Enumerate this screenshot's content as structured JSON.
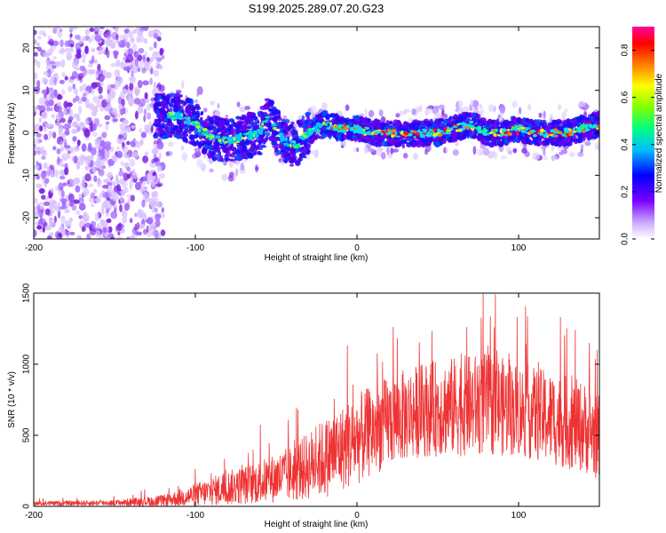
{
  "title": "S199.2025.289.07.20.G23",
  "chart_data": [
    {
      "type": "heatmap",
      "xlabel": "Height of straight line (km)",
      "ylabel": "Frequency (Hz)",
      "xlim": [
        -200,
        150
      ],
      "ylim": [
        -25,
        25
      ],
      "xticks": [
        -200,
        -100,
        0,
        100
      ],
      "yticks": [
        -20,
        -10,
        0,
        10,
        20
      ],
      "colorbar": {
        "label": "Normalized spectral amplitude",
        "range": [
          0,
          0.9
        ],
        "ticks": [
          0.0,
          0.2,
          0.4,
          0.6,
          0.8
        ]
      },
      "ridge": [
        {
          "x": -120,
          "y": 4
        },
        {
          "x": -110,
          "y": 4
        },
        {
          "x": -100,
          "y": 2
        },
        {
          "x": -90,
          "y": -1
        },
        {
          "x": -80,
          "y": -2
        },
        {
          "x": -70,
          "y": -1
        },
        {
          "x": -60,
          "y": 0
        },
        {
          "x": -55,
          "y": 4
        },
        {
          "x": -45,
          "y": -2
        },
        {
          "x": -38,
          "y": -3
        },
        {
          "x": -30,
          "y": 0
        },
        {
          "x": -20,
          "y": 2
        },
        {
          "x": -10,
          "y": 1
        },
        {
          "x": 0,
          "y": 1
        },
        {
          "x": 10,
          "y": 0
        },
        {
          "x": 20,
          "y": 0
        },
        {
          "x": 30,
          "y": -0.5
        },
        {
          "x": 40,
          "y": 0
        },
        {
          "x": 50,
          "y": 0
        },
        {
          "x": 60,
          "y": 1
        },
        {
          "x": 70,
          "y": 2
        },
        {
          "x": 80,
          "y": 0
        },
        {
          "x": 90,
          "y": 0
        },
        {
          "x": 100,
          "y": 1
        },
        {
          "x": 110,
          "y": 0
        },
        {
          "x": 120,
          "y": 0
        },
        {
          "x": 130,
          "y": 0
        },
        {
          "x": 140,
          "y": 1
        },
        {
          "x": 150,
          "y": 2
        }
      ]
    },
    {
      "type": "line",
      "xlabel": "Height of straight line (km)",
      "ylabel": "SNR (10 * v/v)",
      "xlim": [
        -200,
        150
      ],
      "ylim": [
        0,
        1500
      ],
      "xticks": [
        -200,
        -100,
        0,
        100
      ],
      "yticks": [
        0,
        500,
        1000,
        1500
      ],
      "color": "#ee3333",
      "envelope": [
        {
          "x": -200,
          "base": 20,
          "amp": 15
        },
        {
          "x": -150,
          "base": 25,
          "amp": 20
        },
        {
          "x": -120,
          "base": 40,
          "amp": 40
        },
        {
          "x": -100,
          "base": 80,
          "amp": 80
        },
        {
          "x": -80,
          "base": 130,
          "amp": 120
        },
        {
          "x": -60,
          "base": 170,
          "amp": 150
        },
        {
          "x": -40,
          "base": 230,
          "amp": 200
        },
        {
          "x": -20,
          "base": 340,
          "amp": 280
        },
        {
          "x": 0,
          "base": 470,
          "amp": 320
        },
        {
          "x": 20,
          "base": 600,
          "amp": 320
        },
        {
          "x": 40,
          "base": 680,
          "amp": 330
        },
        {
          "x": 60,
          "base": 700,
          "amp": 350
        },
        {
          "x": 80,
          "base": 720,
          "amp": 360
        },
        {
          "x": 100,
          "base": 680,
          "amp": 330
        },
        {
          "x": 120,
          "base": 620,
          "amp": 330
        },
        {
          "x": 140,
          "base": 560,
          "amp": 320
        },
        {
          "x": 150,
          "base": 480,
          "amp": 300
        }
      ],
      "peaks": [
        {
          "x": 78,
          "y": 1500
        },
        {
          "x": 68,
          "y": 1260
        },
        {
          "x": -6,
          "y": 1130
        },
        {
          "x": 135,
          "y": 1240
        }
      ]
    }
  ]
}
